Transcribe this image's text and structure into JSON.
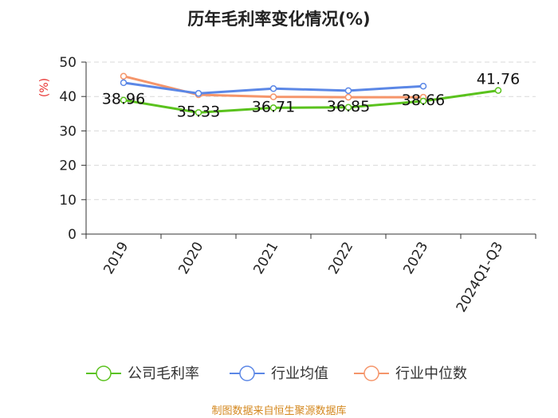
{
  "chart_data": {
    "type": "line",
    "title": "历年毛利率变化情况(%)",
    "ylabel": "(%)",
    "categories": [
      "2019",
      "2020",
      "2021",
      "2022",
      "2023",
      "2024Q1-Q3"
    ],
    "ylim": [
      0,
      50
    ],
    "yticks": [
      0,
      10,
      20,
      30,
      40,
      50
    ],
    "grid": true,
    "legend_position": "bottom",
    "series": [
      {
        "name": "公司毛利率",
        "color": "#5ac21d",
        "values": [
          38.96,
          35.33,
          36.71,
          36.85,
          38.66,
          41.76
        ],
        "labels": [
          "38.96",
          "35.33",
          "36.71",
          "36.85",
          "38.66",
          "41.76"
        ]
      },
      {
        "name": "行业均值",
        "color": "#5b87e6",
        "values": [
          44.0,
          40.9,
          42.3,
          41.7,
          43.0,
          null
        ]
      },
      {
        "name": "行业中位数",
        "color": "#f5956a",
        "values": [
          45.9,
          40.5,
          39.9,
          39.8,
          39.8,
          null
        ]
      }
    ]
  },
  "source": "制图数据来自恒生聚源数据库"
}
